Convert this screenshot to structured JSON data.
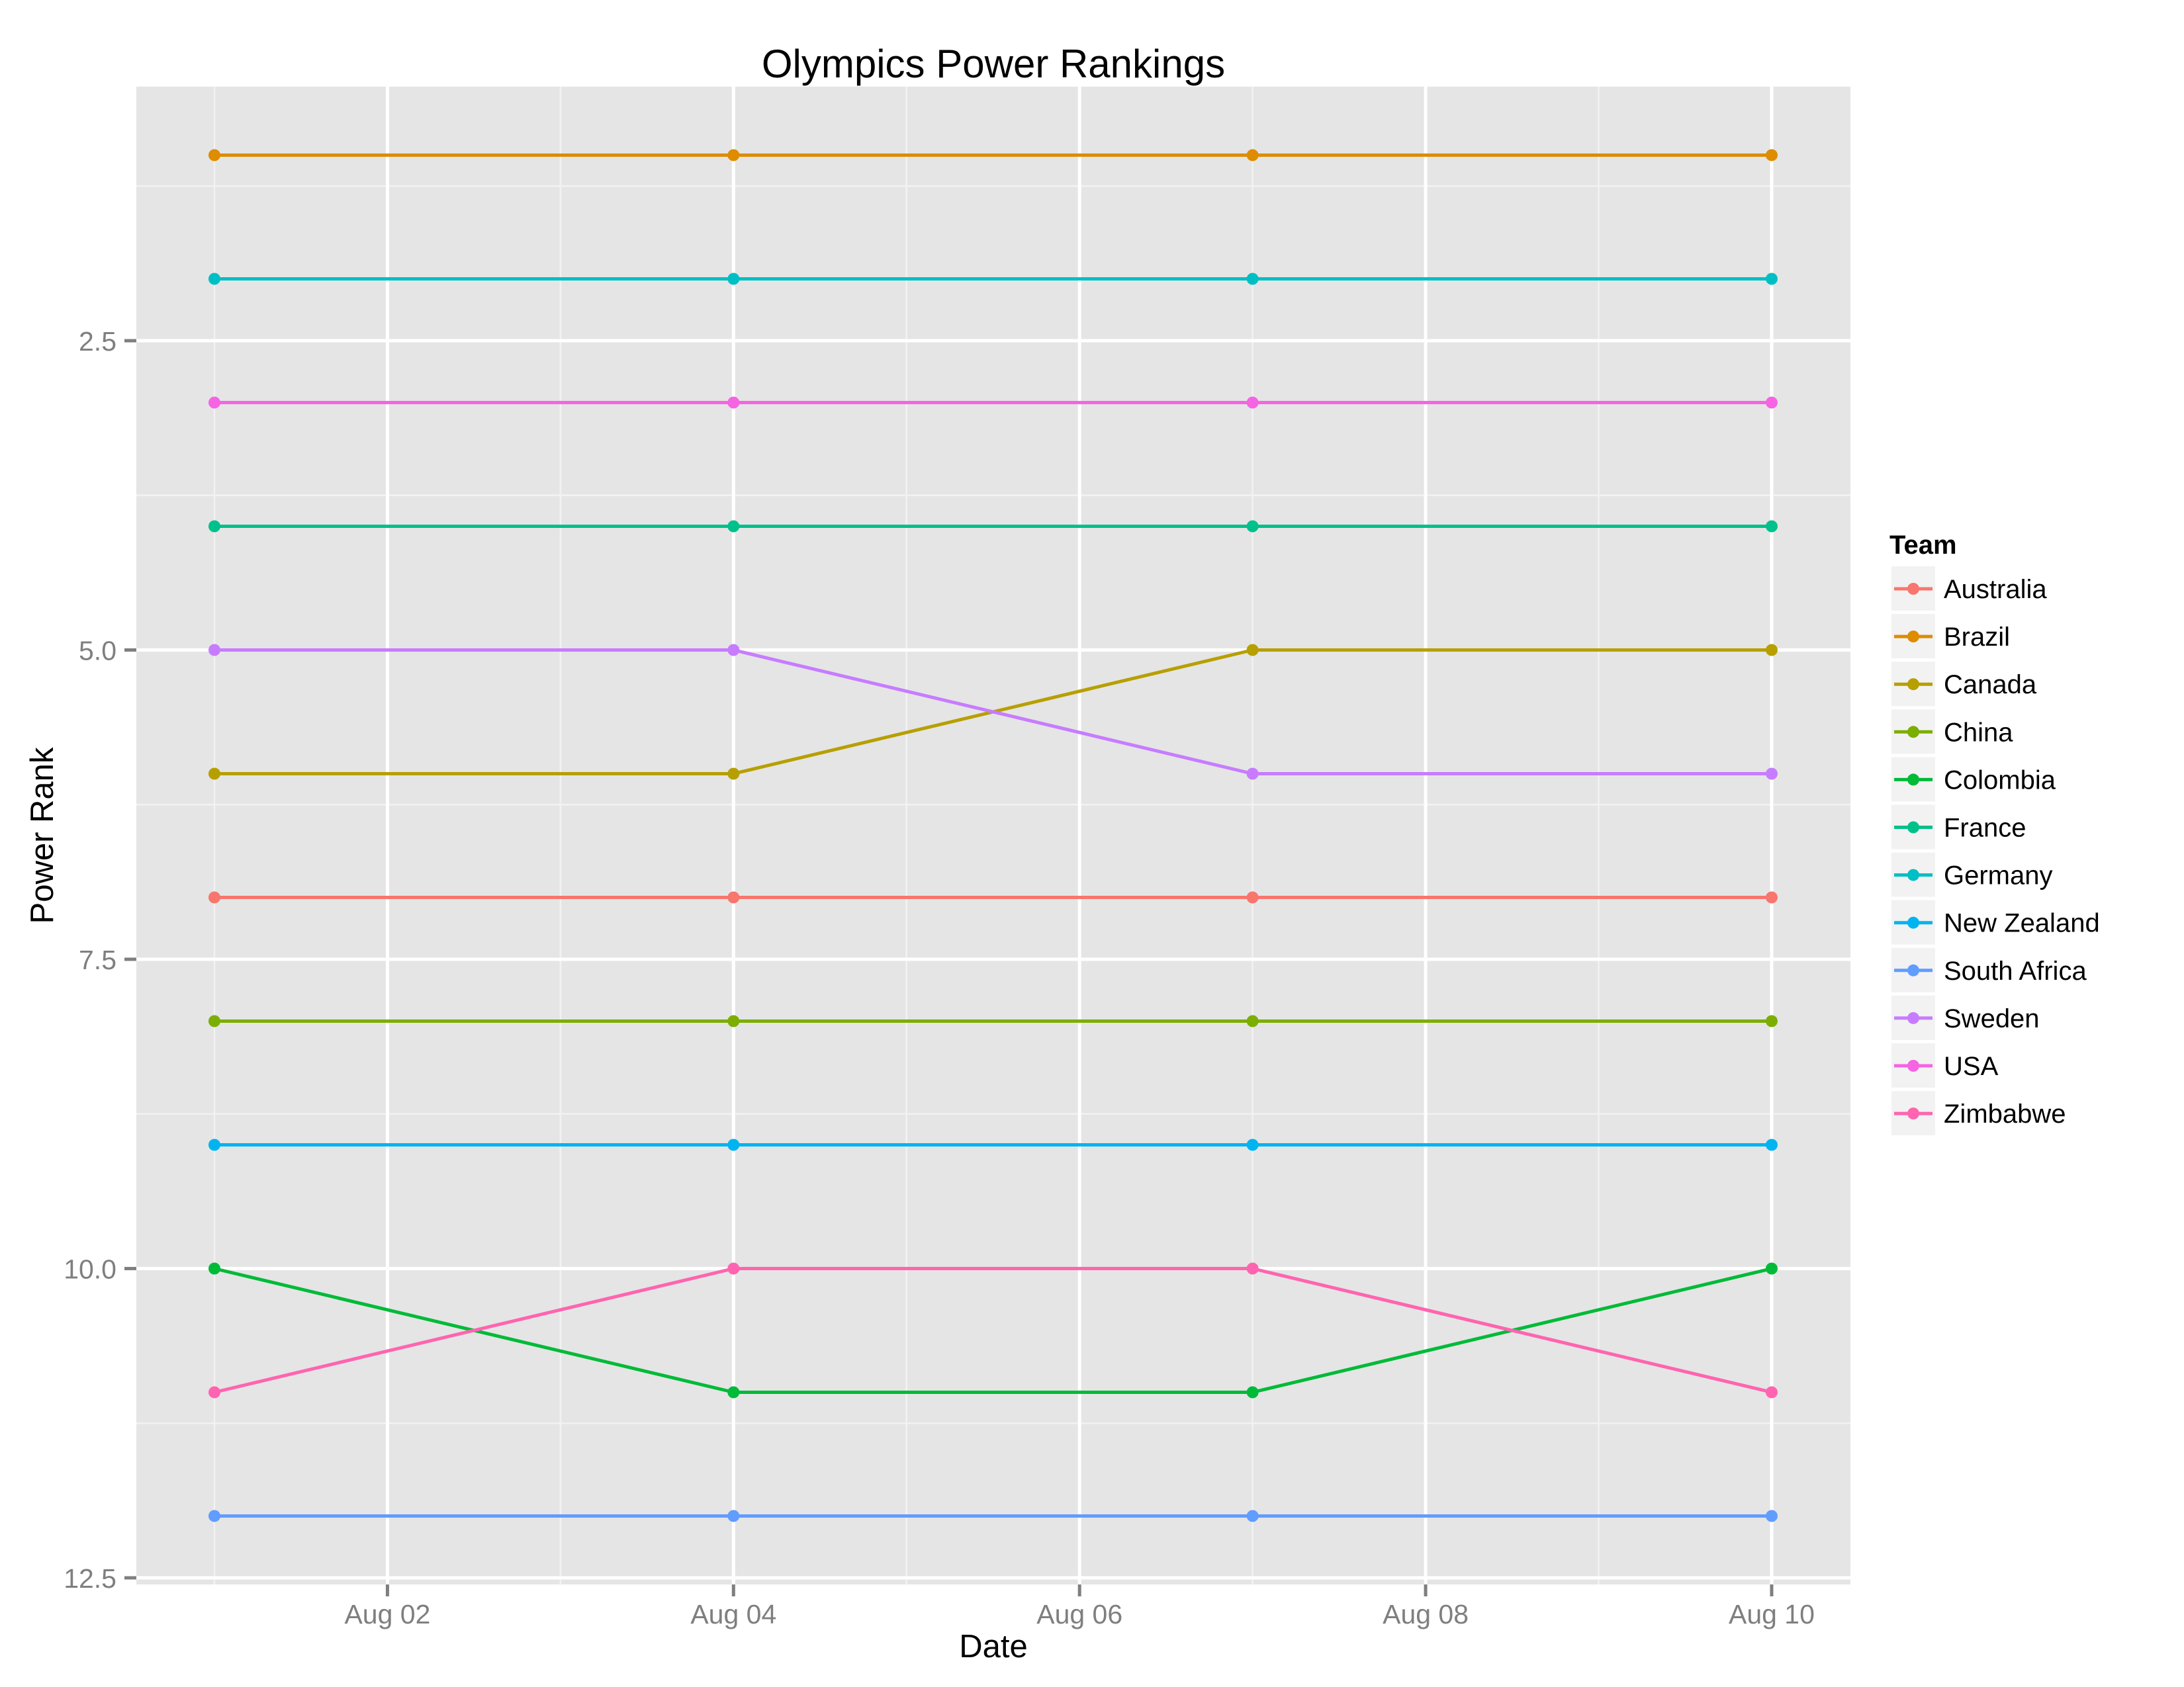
{
  "chart_data": {
    "type": "line",
    "title": "Olympics Power Rankings",
    "xlabel": "Date",
    "ylabel": "Power Rank",
    "y_reversed": true,
    "ylim": [
      12.5,
      0.8
    ],
    "x": [
      "Aug 01",
      "Aug 04",
      "Aug 07",
      "Aug 10"
    ],
    "x_day_index": [
      1,
      4,
      7,
      10
    ],
    "x_ticks": [
      {
        "label": "Aug 02",
        "day": 2
      },
      {
        "label": "Aug 04",
        "day": 4
      },
      {
        "label": "Aug 06",
        "day": 6
      },
      {
        "label": "Aug 08",
        "day": 8
      },
      {
        "label": "Aug 10",
        "day": 10
      }
    ],
    "x_minor_days": [
      1,
      3,
      5,
      7,
      9
    ],
    "y_ticks": [
      {
        "label": "2.5",
        "value": 2.5
      },
      {
        "label": "5.0",
        "value": 5.0
      },
      {
        "label": "7.5",
        "value": 7.5
      },
      {
        "label": "10.0",
        "value": 10.0
      },
      {
        "label": "12.5",
        "value": 12.5
      }
    ],
    "y_minor": [
      1.25,
      3.75,
      6.25,
      8.75,
      11.25
    ],
    "grid": true,
    "legend": {
      "title": "Team",
      "position": "right"
    },
    "series": [
      {
        "name": "Australia",
        "color": "#F8766D",
        "values": [
          7,
          7,
          7,
          7
        ]
      },
      {
        "name": "Brazil",
        "color": "#DE8C00",
        "values": [
          1,
          1,
          1,
          1
        ]
      },
      {
        "name": "Canada",
        "color": "#B79F00",
        "values": [
          6,
          6,
          5,
          5
        ]
      },
      {
        "name": "China",
        "color": "#7CAE00",
        "values": [
          8,
          8,
          8,
          8
        ]
      },
      {
        "name": "Colombia",
        "color": "#00BA38",
        "values": [
          10,
          11,
          11,
          10
        ]
      },
      {
        "name": "France",
        "color": "#00C08B",
        "values": [
          4,
          4,
          4,
          4
        ]
      },
      {
        "name": "Germany",
        "color": "#00BFC4",
        "values": [
          2,
          2,
          2,
          2
        ]
      },
      {
        "name": "New Zealand",
        "color": "#00B4F0",
        "values": [
          9,
          9,
          9,
          9
        ]
      },
      {
        "name": "South Africa",
        "color": "#619CFF",
        "values": [
          12,
          12,
          12,
          12
        ]
      },
      {
        "name": "Sweden",
        "color": "#C77CFF",
        "values": [
          5,
          5,
          6,
          6
        ]
      },
      {
        "name": "USA",
        "color": "#F564E3",
        "values": [
          3,
          3,
          3,
          3
        ]
      },
      {
        "name": "Zimbabwe",
        "color": "#FF64B0",
        "values": [
          11,
          10,
          10,
          11
        ]
      }
    ]
  },
  "style": {
    "panel_background": "#E5E5E5",
    "grid_color": "#FFFFFF",
    "tick_color": "#7F7F7F",
    "legend_key_background": "#F2F2F2"
  }
}
